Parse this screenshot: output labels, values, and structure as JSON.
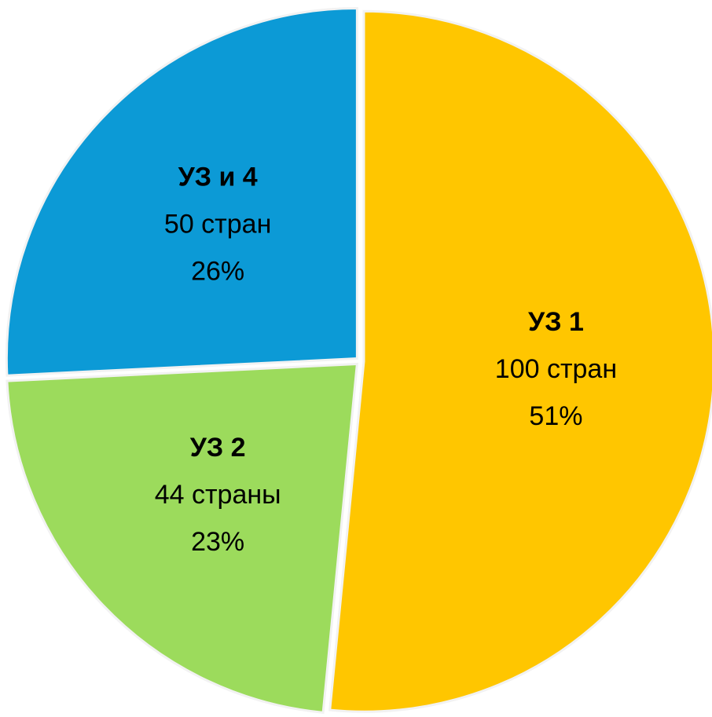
{
  "chart_data": {
    "type": "pie",
    "categories": [
      "УЗ 1",
      "УЗ 2",
      "УЗ и 4"
    ],
    "values": [
      100,
      44,
      50
    ],
    "value_labels": [
      "100 стран",
      "44 страны",
      "50 стран"
    ],
    "percents": [
      51,
      23,
      26
    ],
    "percent_labels": [
      "51%",
      "23%",
      "26%"
    ],
    "colors": [
      "#FFC600",
      "#9CDB5C",
      "#0C9AD6"
    ]
  }
}
